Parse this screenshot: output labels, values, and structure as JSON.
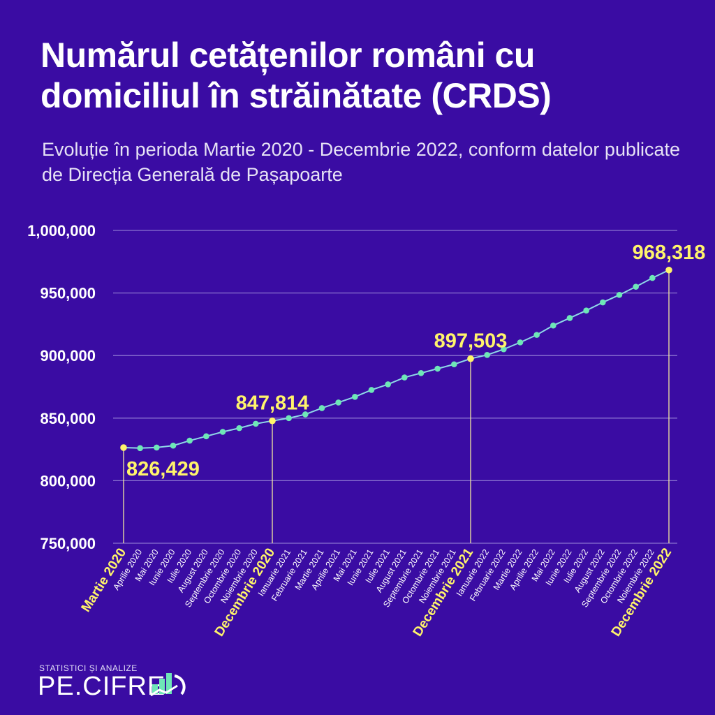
{
  "title": "Numărul cetățenilor români cu domiciliul în străinătate (CRDS)",
  "subtitle": "Evoluție în perioda Martie 2020 - Decembrie 2022, conform datelor publicate de Direcția Generală de Pașapoarte",
  "logo": {
    "tagline": "STATISTICI ȘI ANALIZE",
    "name": "PE.CIFRE"
  },
  "colors": {
    "background": "#3a0ca3",
    "line": "#8fd8e8",
    "point": "#6ee7b7",
    "highlight": "#fff46b",
    "grid": "#8a72d0"
  },
  "chart_data": {
    "type": "line",
    "title": "Numărul cetățenilor români cu domiciliul în străinătate (CRDS)",
    "xlabel": "",
    "ylabel": "",
    "ylim": [
      750000,
      1000000
    ],
    "yticks": [
      "750,000",
      "800,000",
      "850,000",
      "900,000",
      "950,000",
      "1,000,000"
    ],
    "ytick_values": [
      750000,
      800000,
      850000,
      900000,
      950000,
      1000000
    ],
    "grid": true,
    "categories": [
      "Martie 2020",
      "Aprilie 2020",
      "Mai 2020",
      "Iunie 2020",
      "Iulie 2020",
      "August 2020",
      "Septembrie 2020",
      "Octombrie 2020",
      "Noiembrie 2020",
      "Decembrie 2020",
      "Ianuarie 2021",
      "Februarie 2021",
      "Martie 2021",
      "Aprilie 2021",
      "Mai 2021",
      "Iunie 2021",
      "Iulie 2021",
      "August 2021",
      "Septembrie 2021",
      "Octombrie 2021",
      "Noiembrie 2021",
      "Decembrie 2021",
      "Ianuarie 2022",
      "Februarie 2022",
      "Martie 2022",
      "Aprilie 2022",
      "Mai 2022",
      "Iunie 2022",
      "Iulie 2022",
      "August 2022",
      "Septembrie 2022",
      "Octombrie 2022",
      "Noiembrie 2022",
      "Decembrie 2022"
    ],
    "values": [
      826429,
      826000,
      826500,
      828000,
      832000,
      835500,
      839000,
      842000,
      845500,
      847814,
      850000,
      853000,
      858000,
      862500,
      867000,
      872500,
      877000,
      882500,
      886000,
      889500,
      893000,
      897503,
      900500,
      905000,
      910500,
      916500,
      924000,
      930000,
      936000,
      942500,
      948500,
      955000,
      962000,
      968318
    ],
    "highlights": [
      {
        "index": 0,
        "label": "826,429",
        "position": "below-right"
      },
      {
        "index": 9,
        "label": "847,814",
        "position": "above"
      },
      {
        "index": 21,
        "label": "897,503",
        "position": "above"
      },
      {
        "index": 33,
        "label": "968,318",
        "position": "above"
      }
    ]
  }
}
